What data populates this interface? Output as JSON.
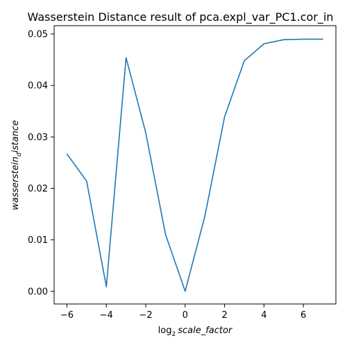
{
  "chart_data": {
    "type": "line",
    "title": "Wasserstein Distance result of pca.expl_var_PC1.cor_in",
    "xlabel_prefix": "log",
    "xlabel_sub": "2",
    "xlabel_main": "scale_factor",
    "ylabel_main": "wasserstein",
    "ylabel_sub": "d",
    "ylabel_tail": "istance",
    "xlim": [
      -6.65,
      7.65
    ],
    "ylim": [
      -0.00246,
      0.05162
    ],
    "x_ticks": [
      -6,
      -4,
      -2,
      0,
      2,
      4,
      6
    ],
    "x_tick_labels": [
      "−6",
      "−4",
      "−2",
      "0",
      "2",
      "4",
      "6"
    ],
    "y_ticks": [
      0.0,
      0.01,
      0.02,
      0.03,
      0.04,
      0.05
    ],
    "y_tick_labels": [
      "0.00",
      "0.01",
      "0.02",
      "0.03",
      "0.04",
      "0.05"
    ],
    "grid": false,
    "color": "#1f77b4",
    "x": [
      -6,
      -5,
      -4,
      -3,
      -2,
      -1,
      0,
      1,
      2,
      3,
      4,
      5,
      6,
      7
    ],
    "y": [
      0.0267,
      0.0214,
      0.0009,
      0.0454,
      0.0308,
      0.0111,
      0.0,
      0.0146,
      0.0339,
      0.0448,
      0.0481,
      0.0489,
      0.049,
      0.049
    ]
  }
}
